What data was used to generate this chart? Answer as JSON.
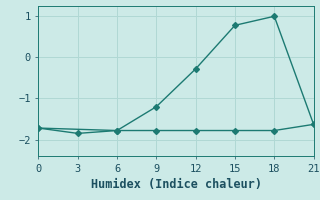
{
  "xlabel": "Humidex (Indice chaleur)",
  "line1_x": [
    0,
    3,
    6,
    9,
    12,
    15,
    18,
    21
  ],
  "line1_y": [
    -1.72,
    -1.85,
    -1.78,
    -1.78,
    -1.78,
    -1.78,
    -1.78,
    -1.63
  ],
  "line2_x": [
    0,
    6,
    9,
    12,
    15,
    18,
    21
  ],
  "line2_y": [
    -1.72,
    -1.78,
    -1.2,
    -0.28,
    0.78,
    1.0,
    -1.63
  ],
  "line_color": "#1c7a72",
  "bg_color": "#cceae7",
  "grid_color": "#b0d8d4",
  "xlim": [
    0,
    21
  ],
  "ylim": [
    -2.4,
    1.25
  ],
  "xticks": [
    0,
    3,
    6,
    9,
    12,
    15,
    18,
    21
  ],
  "yticks": [
    -2,
    -1,
    0,
    1
  ],
  "markersize": 3,
  "linewidth": 1.0,
  "font_color": "#1c5060",
  "tick_fontsize": 7.5,
  "label_fontsize": 8.5
}
